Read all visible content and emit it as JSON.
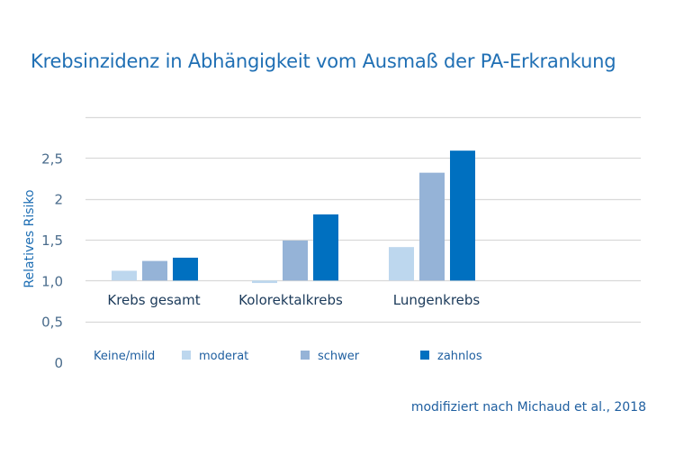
{
  "chart_data": {
    "type": "bar",
    "title": "Krebsinzidenz in Abhängigkeit vom Ausmaß der PA-Erkrankung",
    "ylabel": "Relatives Risiko",
    "xlabel": "",
    "ylim": [
      0,
      3.0
    ],
    "grid": true,
    "categories": [
      "Krebs gesamt",
      "Kolorektalkrebs",
      "Lungenkrebs"
    ],
    "series": [
      {
        "name": "moderat",
        "values": [
          1.12,
          0.97,
          1.41
        ],
        "color": "#bdd7ee"
      },
      {
        "name": "schwer",
        "values": [
          1.24,
          1.49,
          2.32
        ],
        "color": "#95b3d7"
      },
      {
        "name": "zahnlos",
        "values": [
          1.28,
          1.81,
          2.59
        ],
        "color": "#0070c0"
      }
    ],
    "yticks": [
      {
        "value": 0,
        "label": "0"
      },
      {
        "value": 0.5,
        "label": "0,5"
      },
      {
        "value": 1.0,
        "label": "1,0"
      },
      {
        "value": 1.5,
        "label": "1,5"
      },
      {
        "value": 2.0,
        "label": "2"
      },
      {
        "value": 2.5,
        "label": "2,5"
      }
    ],
    "legend_reference": "Keine/mild",
    "legend_position": "bottom",
    "source": "modifiziert nach Michaud et al., 2018"
  }
}
